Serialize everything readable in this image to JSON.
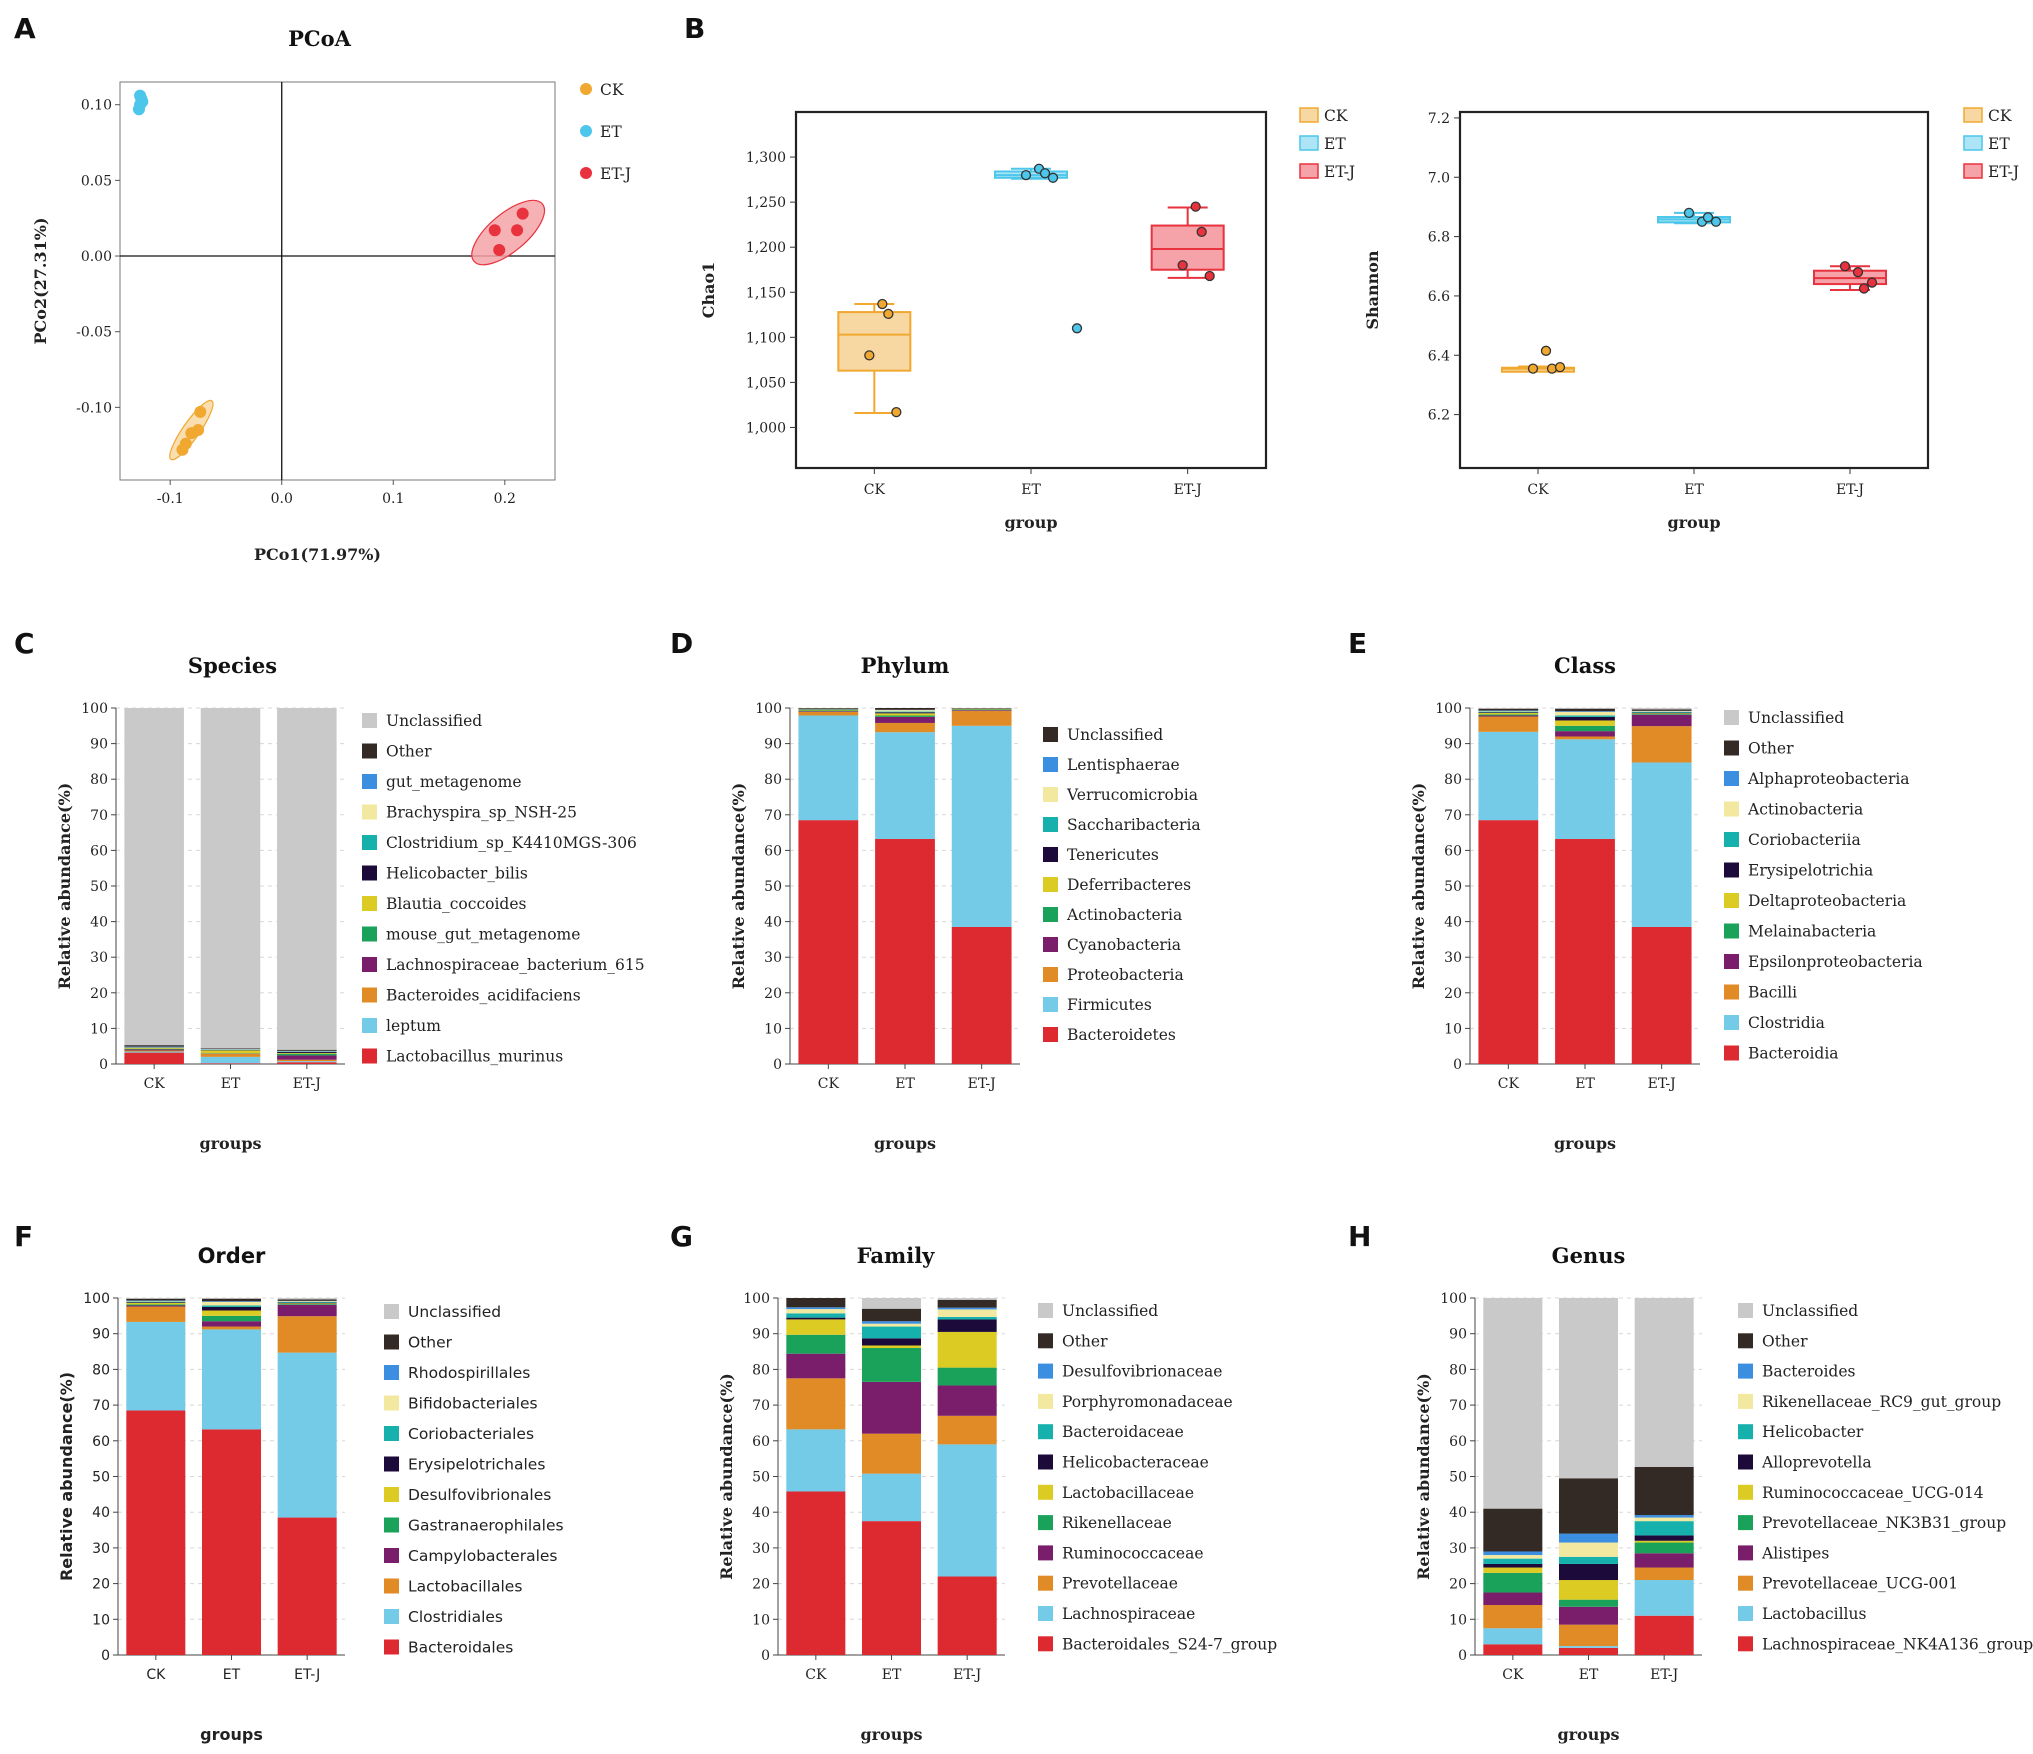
{
  "panel_labels": {
    "A": "A",
    "B": "B",
    "C": "C",
    "D": "D",
    "E": "E",
    "F": "F",
    "G": "G",
    "H": "H"
  },
  "group_colors": {
    "CK": "#f0a830",
    "ET": "#4cc6ea",
    "ET-J": "#e8323e"
  },
  "chart_data": [
    {
      "id": "A",
      "type": "scatter",
      "title": "PCoA",
      "xlabel": "PCo1(71.97%)",
      "ylabel": "PCo2(27.31%)",
      "xlim": [
        -0.145,
        0.245
      ],
      "ylim": [
        -0.148,
        0.115
      ],
      "x_ticks": [
        -0.1,
        0.0,
        0.1,
        0.2
      ],
      "x_tick_labels": [
        "-0.1",
        "0.0",
        "0.1",
        "0.2"
      ],
      "y_ticks": [
        -0.1,
        -0.05,
        0.0,
        0.05,
        0.1
      ],
      "y_tick_labels": [
        "-0.10",
        "-0.05",
        "0.00",
        "0.05",
        "0.10"
      ],
      "series": [
        {
          "name": "CK",
          "points": [
            [
              -0.073,
              -0.103
            ],
            [
              -0.075,
              -0.115
            ],
            [
              -0.081,
              -0.117
            ],
            [
              -0.086,
              -0.124
            ],
            [
              -0.089,
              -0.128
            ]
          ]
        },
        {
          "name": "ET",
          "points": [
            [
              -0.126,
              0.104
            ],
            [
              -0.127,
              0.1
            ],
            [
              -0.128,
              0.097
            ],
            [
              -0.125,
              0.102
            ],
            [
              -0.127,
              0.106
            ]
          ]
        },
        {
          "name": "ET-J",
          "points": [
            [
              0.216,
              0.028
            ],
            [
              0.211,
              0.017
            ],
            [
              0.191,
              0.017
            ],
            [
              0.195,
              0.004
            ]
          ]
        }
      ],
      "ellipses": [
        {
          "group": "CK",
          "cx": -0.081,
          "cy": -0.115,
          "rx": 0.032,
          "ry": 0.0075,
          "angle_deg": -55
        },
        {
          "group": "ET-J",
          "cx": 0.203,
          "cy": 0.0155,
          "rx": 0.04,
          "ry": 0.017,
          "angle_deg": -40
        }
      ],
      "legend": [
        "CK",
        "ET",
        "ET-J"
      ],
      "legend_position": "right"
    },
    {
      "id": "B1",
      "type": "box",
      "title": "",
      "xlabel": "group",
      "ylabel": "Chao1",
      "categories": [
        "CK",
        "ET",
        "ET-J"
      ],
      "ylim": [
        955,
        1350
      ],
      "y_ticks": [
        1000,
        1050,
        1100,
        1150,
        1200,
        1250,
        1300
      ],
      "y_tick_labels": [
        "1,000",
        "1,050",
        "1,100",
        "1,150",
        "1,200",
        "1,250",
        "1,300"
      ],
      "boxes": [
        {
          "group": "CK",
          "min": 1016,
          "q1": 1063,
          "median": 1103,
          "q3": 1128,
          "max": 1137,
          "points": [
            1137,
            1126,
            1080,
            1017
          ],
          "outliers": []
        },
        {
          "group": "ET",
          "min": 1276,
          "q1": 1277,
          "median": 1280,
          "q3": 1284,
          "max": 1287,
          "points": [
            1287,
            1282,
            1280,
            1277
          ],
          "outliers": [
            1110
          ]
        },
        {
          "group": "ET-J",
          "min": 1166,
          "q1": 1175,
          "median": 1198,
          "q3": 1224,
          "max": 1244,
          "points": [
            1245,
            1217,
            1180,
            1168
          ],
          "outliers": []
        }
      ],
      "legend": [
        "CK",
        "ET",
        "ET-J"
      ],
      "legend_position": "top-right outside"
    },
    {
      "id": "B2",
      "type": "box",
      "title": "",
      "xlabel": "group",
      "ylabel": "Shannon",
      "categories": [
        "CK",
        "ET",
        "ET-J"
      ],
      "ylim": [
        6.02,
        7.22
      ],
      "y_ticks": [
        6.2,
        6.4,
        6.6,
        6.8,
        7.0,
        7.2
      ],
      "y_tick_labels": [
        "6.2",
        "6.4",
        "6.6",
        "6.8",
        "7.0",
        "7.2"
      ],
      "boxes": [
        {
          "group": "CK",
          "min": 6.35,
          "q1": 6.352,
          "median": 6.355,
          "q3": 6.358,
          "max": 6.362,
          "points": [
            6.415,
            6.355,
            6.355,
            6.36
          ],
          "outliers": []
        },
        {
          "group": "ET",
          "min": 6.845,
          "q1": 6.848,
          "median": 6.858,
          "q3": 6.866,
          "max": 6.88,
          "points": [
            6.85,
            6.865,
            6.88,
            6.85
          ],
          "outliers": []
        },
        {
          "group": "ET-J",
          "min": 6.62,
          "q1": 6.64,
          "median": 6.66,
          "q3": 6.685,
          "max": 6.7,
          "points": [
            6.68,
            6.625,
            6.7,
            6.645
          ],
          "outliers": []
        }
      ],
      "legend": [
        "CK",
        "ET",
        "ET-J"
      ],
      "legend_position": "top-right outside"
    },
    {
      "id": "C",
      "type": "stacked_bar",
      "title": "Species",
      "xlabel": "groups",
      "ylabel": "Relative abundance(%)",
      "categories": [
        "CK",
        "ET",
        "ET-J"
      ],
      "ylim": [
        0,
        100
      ],
      "series": [
        {
          "name": "Lactobacillus_murinus",
          "color": "#dd2a30",
          "values": [
            3.2,
            0.2,
            0.5
          ]
        },
        {
          "name": "leptum",
          "color": "#73cbe8",
          "values": [
            0.3,
            1.8,
            0.3
          ]
        },
        {
          "name": "Bacteroides_acidifaciens",
          "color": "#e08b25",
          "values": [
            0.3,
            0.8,
            0.4
          ]
        },
        {
          "name": "Lachnospiraceae_bacterium_615",
          "color": "#7a1e6b",
          "values": [
            0.3,
            0.1,
            1.2
          ]
        },
        {
          "name": "mouse_gut_metagenome",
          "color": "#1ba25a",
          "values": [
            0.2,
            0.1,
            0.5
          ]
        },
        {
          "name": "Blautia_coccoides",
          "color": "#dccb22",
          "values": [
            0.2,
            0.8,
            0.2
          ]
        },
        {
          "name": "Helicobacter_bilis",
          "color": "#1c0b3a",
          "values": [
            0.1,
            0.1,
            0.3
          ]
        },
        {
          "name": "Clostridium_sp_K4410MGS-306",
          "color": "#16b1ad",
          "values": [
            0.1,
            0.1,
            0.1
          ]
        },
        {
          "name": "Brachyspira_sp_NSH-25",
          "color": "#f2e8a0",
          "values": [
            0.1,
            0.1,
            0.1
          ]
        },
        {
          "name": "gut_metagenome",
          "color": "#3b8ee0",
          "values": [
            0.1,
            0.1,
            0.1
          ]
        },
        {
          "name": "Other",
          "color": "#342a25",
          "values": [
            0.4,
            0.2,
            0.3
          ]
        },
        {
          "name": "Unclassified",
          "color": "#c9c9c9",
          "values": [
            94.7,
            95.6,
            96.0
          ]
        }
      ]
    },
    {
      "id": "D",
      "type": "stacked_bar",
      "title": "Phylum",
      "xlabel": "groups",
      "ylabel": "Relative abundance(%)",
      "categories": [
        "CK",
        "ET",
        "ET-J"
      ],
      "ylim": [
        0,
        100
      ],
      "series": [
        {
          "name": "Bacteroidetes",
          "color": "#dd2a30",
          "values": [
            68.5,
            63.2,
            38.5
          ]
        },
        {
          "name": "Firmicutes",
          "color": "#73cbe8",
          "values": [
            29.4,
            30.0,
            56.5
          ]
        },
        {
          "name": "Proteobacteria",
          "color": "#e08b25",
          "values": [
            1.0,
            2.6,
            4.2
          ]
        },
        {
          "name": "Cyanobacteria",
          "color": "#7a1e6b",
          "values": [
            0.2,
            1.7,
            0.2
          ]
        },
        {
          "name": "Actinobacteria",
          "color": "#1ba25a",
          "values": [
            0.2,
            0.4,
            0.2
          ]
        },
        {
          "name": "Deferribacteres",
          "color": "#dccb22",
          "values": [
            0.2,
            0.6,
            0.1
          ]
        },
        {
          "name": "Tenericutes",
          "color": "#1c0b3a",
          "values": [
            0.1,
            0.3,
            0.1
          ]
        },
        {
          "name": "Saccharibacteria",
          "color": "#16b1ad",
          "values": [
            0.1,
            0.2,
            0.0
          ]
        },
        {
          "name": "Verrucomicrobia",
          "color": "#f2e8a0",
          "values": [
            0.1,
            0.4,
            0.1
          ]
        },
        {
          "name": "Lentisphaerae",
          "color": "#3b8ee0",
          "values": [
            0.0,
            0.1,
            0.0
          ]
        },
        {
          "name": "Unclassified",
          "color": "#342a25",
          "values": [
            0.2,
            0.5,
            0.1
          ]
        }
      ]
    },
    {
      "id": "E",
      "type": "stacked_bar",
      "title": "Class",
      "xlabel": "groups",
      "ylabel": "Relative abundance(%)",
      "categories": [
        "CK",
        "ET",
        "ET-J"
      ],
      "ylim": [
        0,
        100
      ],
      "series": [
        {
          "name": "Bacteroidia",
          "color": "#dd2a30",
          "values": [
            68.5,
            63.2,
            38.5
          ]
        },
        {
          "name": "Clostridia",
          "color": "#73cbe8",
          "values": [
            24.8,
            28.0,
            46.2
          ]
        },
        {
          "name": "Bacilli",
          "color": "#e08b25",
          "values": [
            4.3,
            0.8,
            10.2
          ]
        },
        {
          "name": "Epsilonproteobacteria",
          "color": "#7a1e6b",
          "values": [
            0.3,
            1.5,
            3.2
          ]
        },
        {
          "name": "Melainabacteria",
          "color": "#1ba25a",
          "values": [
            0.3,
            1.5,
            0.2
          ]
        },
        {
          "name": "Deltaproteobacteria",
          "color": "#dccb22",
          "values": [
            0.4,
            1.5,
            0.2
          ]
        },
        {
          "name": "Erysipelotrichia",
          "color": "#1c0b3a",
          "values": [
            0.2,
            1.0,
            0.2
          ]
        },
        {
          "name": "Coriobacteriia",
          "color": "#16b1ad",
          "values": [
            0.2,
            0.4,
            0.2
          ]
        },
        {
          "name": "Actinobacteria",
          "color": "#f2e8a0",
          "values": [
            0.2,
            1.0,
            0.2
          ]
        },
        {
          "name": "Alphaproteobacteria",
          "color": "#3b8ee0",
          "values": [
            0.1,
            0.2,
            0.1
          ]
        },
        {
          "name": "Other",
          "color": "#342a25",
          "values": [
            0.5,
            0.7,
            0.4
          ]
        },
        {
          "name": "Unclassified",
          "color": "#c9c9c9",
          "values": [
            0.2,
            0.2,
            0.4
          ]
        }
      ]
    },
    {
      "id": "F",
      "type": "stacked_bar",
      "title": "Order",
      "xlabel": "groups",
      "ylabel": "Relative abundance(%)",
      "categories": [
        "CK",
        "ET",
        "ET-J"
      ],
      "ylim": [
        0,
        100
      ],
      "series": [
        {
          "name": "Bacteroidales",
          "color": "#dd2a30",
          "values": [
            68.5,
            63.2,
            38.5
          ]
        },
        {
          "name": "Clostridiales",
          "color": "#73cbe8",
          "values": [
            24.8,
            28.0,
            46.2
          ]
        },
        {
          "name": "Lactobacillales",
          "color": "#e08b25",
          "values": [
            4.3,
            0.8,
            10.2
          ]
        },
        {
          "name": "Campylobacterales",
          "color": "#7a1e6b",
          "values": [
            0.3,
            1.5,
            3.2
          ]
        },
        {
          "name": "Gastranaerophilales",
          "color": "#1ba25a",
          "values": [
            0.3,
            1.5,
            0.2
          ]
        },
        {
          "name": "Desulfovibrionales",
          "color": "#dccb22",
          "values": [
            0.4,
            1.5,
            0.2
          ]
        },
        {
          "name": "Erysipelotrichales",
          "color": "#1c0b3a",
          "values": [
            0.2,
            1.0,
            0.2
          ]
        },
        {
          "name": "Coriobacteriales",
          "color": "#16b1ad",
          "values": [
            0.2,
            0.4,
            0.2
          ]
        },
        {
          "name": "Bifidobacteriales",
          "color": "#f2e8a0",
          "values": [
            0.2,
            1.0,
            0.2
          ]
        },
        {
          "name": "Rhodospirillales",
          "color": "#3b8ee0",
          "values": [
            0.1,
            0.2,
            0.1
          ]
        },
        {
          "name": "Other",
          "color": "#342a25",
          "values": [
            0.5,
            0.7,
            0.4
          ]
        },
        {
          "name": "Unclassified",
          "color": "#c9c9c9",
          "values": [
            0.2,
            0.2,
            0.4
          ]
        }
      ]
    },
    {
      "id": "G",
      "type": "stacked_bar",
      "title": "Family",
      "xlabel": "groups",
      "ylabel": "Relative abundance(%)",
      "categories": [
        "CK",
        "ET",
        "ET-J"
      ],
      "ylim": [
        0,
        100
      ],
      "series": [
        {
          "name": "Bacteroidales_S24-7_group",
          "color": "#dd2a30",
          "values": [
            45.8,
            37.5,
            22.0
          ]
        },
        {
          "name": "Lachnospiraceae",
          "color": "#73cbe8",
          "values": [
            17.4,
            13.3,
            37.0
          ]
        },
        {
          "name": "Prevotellaceae",
          "color": "#e08b25",
          "values": [
            14.3,
            11.2,
            8.0
          ]
        },
        {
          "name": "Ruminococcaceae",
          "color": "#7a1e6b",
          "values": [
            6.9,
            14.5,
            8.5
          ]
        },
        {
          "name": "Rikenellaceae",
          "color": "#1ba25a",
          "values": [
            5.3,
            9.5,
            5.0
          ]
        },
        {
          "name": "Lactobacillaceae",
          "color": "#dccb22",
          "values": [
            4.3,
            0.7,
            10.0
          ]
        },
        {
          "name": "Helicobacteraceae",
          "color": "#1c0b3a",
          "values": [
            0.5,
            2.0,
            3.5
          ]
        },
        {
          "name": "Bacteroidaceae",
          "color": "#16b1ad",
          "values": [
            1.2,
            3.3,
            0.7
          ]
        },
        {
          "name": "Porphyromonadaceae",
          "color": "#f2e8a0",
          "values": [
            1.2,
            0.8,
            2.1
          ]
        },
        {
          "name": "Desulfovibrionaceae",
          "color": "#3b8ee0",
          "values": [
            0.5,
            0.7,
            0.5
          ]
        },
        {
          "name": "Other",
          "color": "#342a25",
          "values": [
            2.6,
            3.5,
            2.2
          ]
        },
        {
          "name": "Unclassified",
          "color": "#c9c9c9",
          "values": [
            0.0,
            3.0,
            0.5
          ]
        }
      ]
    },
    {
      "id": "H",
      "type": "stacked_bar",
      "title": "Genus",
      "xlabel": "groups",
      "ylabel": "Relative abundance(%)",
      "categories": [
        "CK",
        "ET",
        "ET-J"
      ],
      "ylim": [
        0,
        100
      ],
      "series": [
        {
          "name": "Lachnospiraceae_NK4A136_group",
          "color": "#dd2a30",
          "values": [
            3.0,
            2.0,
            11.0
          ]
        },
        {
          "name": "Lactobacillus",
          "color": "#73cbe8",
          "values": [
            4.5,
            0.5,
            10.0
          ]
        },
        {
          "name": "Prevotellaceae_UCG-001",
          "color": "#e08b25",
          "values": [
            6.5,
            6.0,
            3.5
          ]
        },
        {
          "name": "Alistipes",
          "color": "#7a1e6b",
          "values": [
            3.5,
            5.0,
            4.0
          ]
        },
        {
          "name": "Prevotellaceae_NK3B31_group",
          "color": "#1ba25a",
          "values": [
            5.5,
            2.0,
            3.0
          ]
        },
        {
          "name": "Ruminococcaceae_UCG-014",
          "color": "#dccb22",
          "values": [
            1.5,
            5.5,
            0.5
          ]
        },
        {
          "name": "Alloprevotella",
          "color": "#1c0b3a",
          "values": [
            1.0,
            4.5,
            1.5
          ]
        },
        {
          "name": "Helicobacter",
          "color": "#16b1ad",
          "values": [
            1.5,
            2.0,
            4.0
          ]
        },
        {
          "name": "Rikenellaceae_RC9_gut_group",
          "color": "#f2e8a0",
          "values": [
            1.0,
            4.0,
            1.0
          ]
        },
        {
          "name": "Bacteroides",
          "color": "#3b8ee0",
          "values": [
            1.0,
            2.5,
            0.7
          ]
        },
        {
          "name": "Other",
          "color": "#342a25",
          "values": [
            12.0,
            15.5,
            13.5
          ]
        },
        {
          "name": "Unclassified",
          "color": "#c9c9c9",
          "values": [
            59.0,
            50.5,
            47.3
          ]
        }
      ]
    }
  ]
}
